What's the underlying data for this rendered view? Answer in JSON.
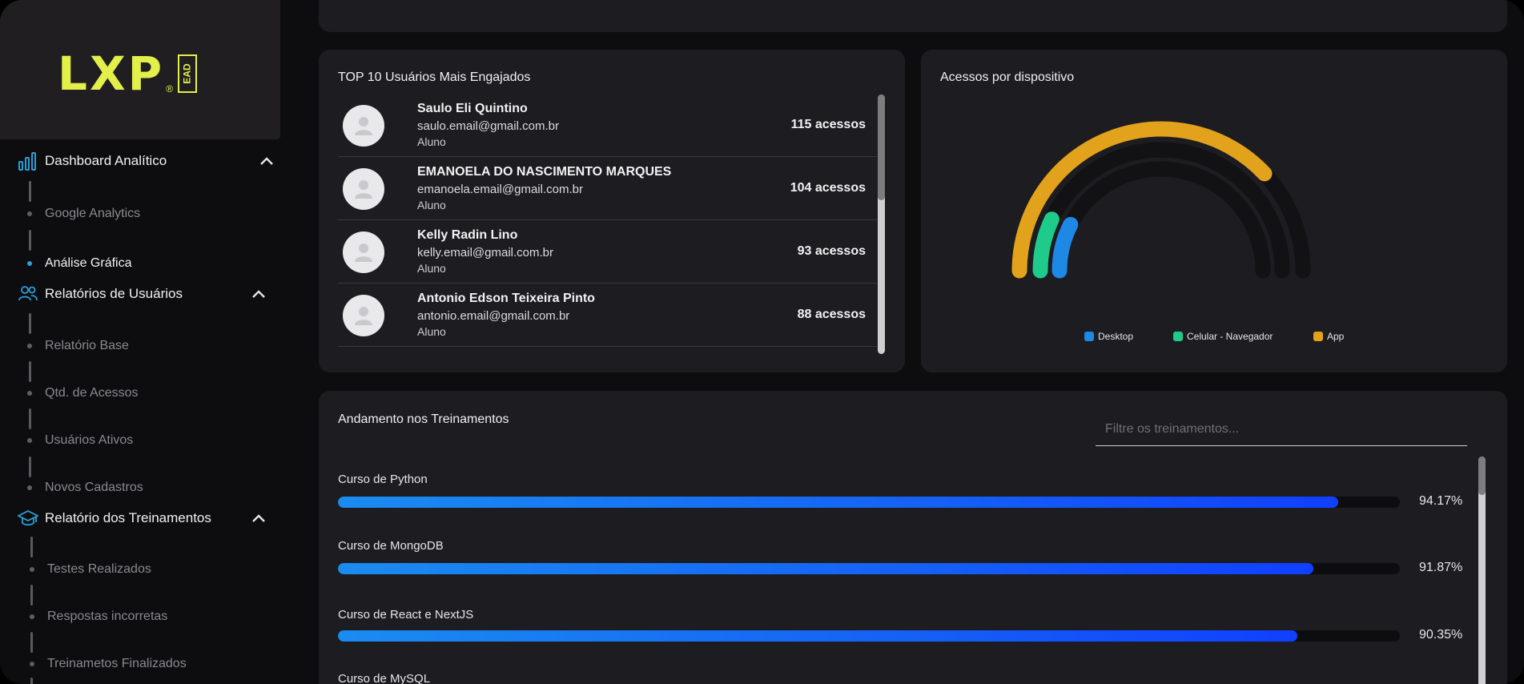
{
  "brand": {
    "logo_text": "LXP",
    "logo_mark": "®",
    "logo_badge": "EAD",
    "color": "#e3f049"
  },
  "sidebar": {
    "sections": [
      {
        "label": "Dashboard Analítico",
        "icon": "bar-chart-icon",
        "items": [
          {
            "label": "Google Analytics",
            "active": false
          },
          {
            "label": "Análise Gráfica",
            "active": true
          }
        ]
      },
      {
        "label": "Relatórios de Usuários",
        "icon": "users-icon",
        "items": [
          {
            "label": "Relatório Base"
          },
          {
            "label": "Qtd. de Acessos"
          },
          {
            "label": "Usuários Ativos"
          },
          {
            "label": "Novos Cadastros"
          }
        ]
      },
      {
        "label": "Relatório dos Treinamentos",
        "icon": "graduation-cap-icon",
        "items": [
          {
            "label": "Testes Realizados"
          },
          {
            "label": "Respostas incorretas"
          },
          {
            "label": "Treinametos Finalizados"
          }
        ]
      }
    ]
  },
  "top_users": {
    "title": "TOP 10 Usuários Mais Engajados",
    "users": [
      {
        "name": "Saulo Eli Quintino",
        "email": "saulo.email@gmail.com.br",
        "role": "Aluno",
        "count": "115 acessos"
      },
      {
        "name": "EMANOELA DO NASCIMENTO MARQUES",
        "email": "emanoela.email@gmail.com.br",
        "role": "Aluno",
        "count": "104 acessos"
      },
      {
        "name": "Kelly Radin Lino",
        "email": "kelly.email@gmail.com.br",
        "role": "Aluno",
        "count": "93 acessos"
      },
      {
        "name": "Antonio Edson Teixeira Pinto",
        "email": "antonio.email@gmail.com.br",
        "role": "Aluno",
        "count": "88 acessos"
      }
    ]
  },
  "devices": {
    "title": "Acessos por dispositivo",
    "legend": [
      {
        "label": "Desktop",
        "color": "#1e88e5"
      },
      {
        "label": "Celular - Navegador",
        "color": "#1ecb8a"
      },
      {
        "label": "App",
        "color": "#e2a21c"
      }
    ]
  },
  "chart_data": {
    "type": "radial-bar",
    "series": [
      {
        "name": "App",
        "value": 0.76,
        "color": "#e2a21c"
      },
      {
        "name": "Celular - Navegador",
        "value": 0.14,
        "color": "#1ecb8a"
      },
      {
        "name": "Desktop",
        "value": 0.15,
        "color": "#1e88e5"
      }
    ],
    "legend_position": "bottom"
  },
  "trainings": {
    "title": "Andamento nos Treinamentos",
    "filter_placeholder": "Filtre os treinamentos...",
    "items": [
      {
        "label": "Curso de Python",
        "value": 94.17,
        "pct": "94.17%"
      },
      {
        "label": "Curso de MongoDB",
        "value": 91.87,
        "pct": "91.87%"
      },
      {
        "label": "Curso de React e NextJS",
        "value": 90.35,
        "pct": "90.35%"
      },
      {
        "label": "Curso de MySQL"
      }
    ]
  }
}
